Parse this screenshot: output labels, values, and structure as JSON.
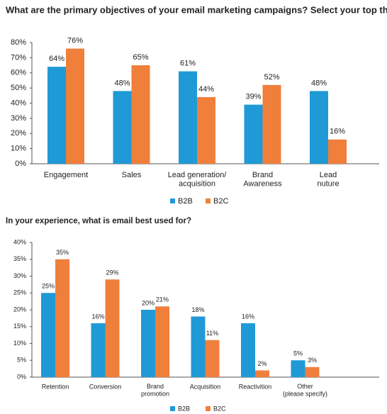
{
  "chart_data": [
    {
      "type": "bar",
      "title": "What are the primary objectives of your email marketing campaigns? Select your top three.",
      "categories": [
        "Engagement",
        "Sales",
        "Lead generation/\nacquisition",
        "Brand\nAwareness",
        "Lead\nnuture"
      ],
      "series": [
        {
          "name": "B2B",
          "color": "#1f9ad6",
          "values": [
            64,
            48,
            61,
            39,
            48
          ],
          "value_labels": [
            "64%",
            "48%",
            "61%",
            "39%",
            "48%"
          ]
        },
        {
          "name": "B2C",
          "color": "#f07f3c",
          "values": [
            76,
            65,
            44,
            52,
            16
          ],
          "value_labels": [
            "76%",
            "65%",
            "44%",
            "52%",
            "16%"
          ]
        }
      ],
      "ylim": [
        0,
        80
      ],
      "yticks": [
        {
          "value": 0,
          "label": "0%"
        },
        {
          "value": 10,
          "label": "10%"
        },
        {
          "value": 20,
          "label": "20%"
        },
        {
          "value": 30,
          "label": "30%"
        },
        {
          "value": 40,
          "label": "40%"
        },
        {
          "value": 50,
          "label": "50%"
        },
        {
          "value": 60,
          "label": "60%"
        },
        {
          "value": 70,
          "label": "70%"
        },
        {
          "value": 80,
          "label": "80%"
        }
      ],
      "grid": false,
      "legend": "bottom"
    },
    {
      "type": "bar",
      "title": "In your experience, what is email best used for?",
      "categories": [
        "Retention",
        "Conversion",
        "Brand\npromotion",
        "Acquisition",
        "Reactivition",
        "Other\n(please specify)"
      ],
      "series": [
        {
          "name": "B2B",
          "color": "#1f9ad6",
          "values": [
            25,
            16,
            20,
            18,
            16,
            5
          ],
          "value_labels": [
            "25%",
            "16%",
            "20%",
            "18%",
            "16%",
            "5%"
          ]
        },
        {
          "name": "B2C",
          "color": "#f07f3c",
          "values": [
            35,
            29,
            21,
            11,
            2,
            3
          ],
          "value_labels": [
            "35%",
            "29%",
            "21%",
            "11%",
            "2%",
            "3%"
          ]
        }
      ],
      "ylim": [
        0,
        40
      ],
      "yticks": [
        {
          "value": 0,
          "label": "0%"
        },
        {
          "value": 5,
          "label": "5%"
        },
        {
          "value": 10,
          "label": "10%"
        },
        {
          "value": 15,
          "label": "15%"
        },
        {
          "value": 20,
          "label": "20%"
        },
        {
          "value": 25,
          "label": "25%"
        },
        {
          "value": 30,
          "label": "30%"
        },
        {
          "value": 35,
          "label": "35%"
        },
        {
          "value": 40,
          "label": "40%"
        }
      ],
      "grid": false,
      "legend": "bottom"
    }
  ]
}
